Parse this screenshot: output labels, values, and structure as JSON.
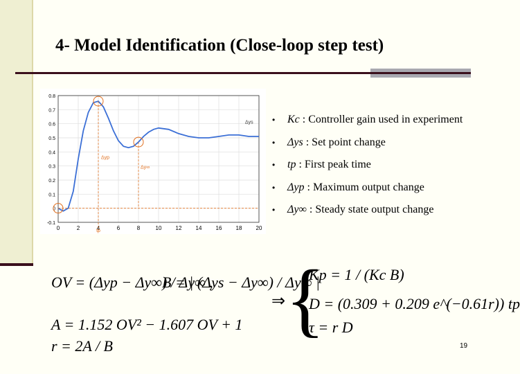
{
  "slide": {
    "title": "4- Model Identification (Close-loop step test)",
    "page_number": "19"
  },
  "bullets": [
    {
      "symbol": "Kc",
      "text": ": Controller gain used in experiment"
    },
    {
      "symbol": "Δys",
      "text": ": Set point change"
    },
    {
      "symbol": "tp",
      "text": ": First peak time"
    },
    {
      "symbol": "Δyp",
      "text": ": Maximum output change"
    },
    {
      "symbol": "Δy∞",
      "text": ": Steady state output change"
    }
  ],
  "chart_data": {
    "type": "line",
    "title": "",
    "xlabel": "",
    "ylabel": "",
    "xlim": [
      0,
      20
    ],
    "ylim": [
      -0.1,
      0.8
    ],
    "x_ticks": [
      "0",
      "2",
      "4",
      "6",
      "8",
      "10",
      "12",
      "14",
      "16",
      "18",
      "20"
    ],
    "y_ticks": [
      "-0.1",
      "0",
      "0.1",
      "0.2",
      "0.3",
      "0.4",
      "0.5",
      "0.6",
      "0.7",
      "0.8"
    ],
    "grid": true,
    "series": [
      {
        "x": [
          0,
          0.5,
          1,
          1.5,
          2,
          2.5,
          3,
          3.5,
          4,
          4.5,
          5,
          5.5,
          6,
          6.5,
          7,
          7.5,
          8,
          8.5,
          9,
          9.5,
          10,
          11,
          12,
          13,
          14,
          15,
          16,
          17,
          18,
          19,
          20
        ],
        "y": [
          0,
          -0.02,
          0.0,
          0.12,
          0.35,
          0.55,
          0.68,
          0.75,
          0.76,
          0.72,
          0.64,
          0.55,
          0.48,
          0.44,
          0.43,
          0.44,
          0.47,
          0.51,
          0.54,
          0.56,
          0.57,
          0.56,
          0.53,
          0.51,
          0.5,
          0.5,
          0.51,
          0.52,
          0.52,
          0.51,
          0.51
        ]
      }
    ],
    "annotations": [
      {
        "label": "Δyp",
        "x": 4
      },
      {
        "label": "Δy∞",
        "x": 8
      },
      {
        "label": "Δys",
        "x": 20
      },
      {
        "label": "tp",
        "x": 4
      }
    ]
  },
  "equations": {
    "ov_def": "OV = (Δyp − Δy∞) / Δy∞ ,",
    "b_def": "B = | (Δys − Δy∞) / Δy∞ |",
    "a_def": "A = 1.152 OV² − 1.607 OV + 1",
    "r_def": "r = 2A / B",
    "kp_def": "Kp = 1 / (Kc B)",
    "d_def": "D = (0.309 + 0.209 e^(−0.61r)) tp",
    "tau_def": "τ = r D"
  },
  "colors": {
    "curve": "#3b6fd6",
    "markers": "#e07020",
    "rule": "#3a0f1c"
  }
}
